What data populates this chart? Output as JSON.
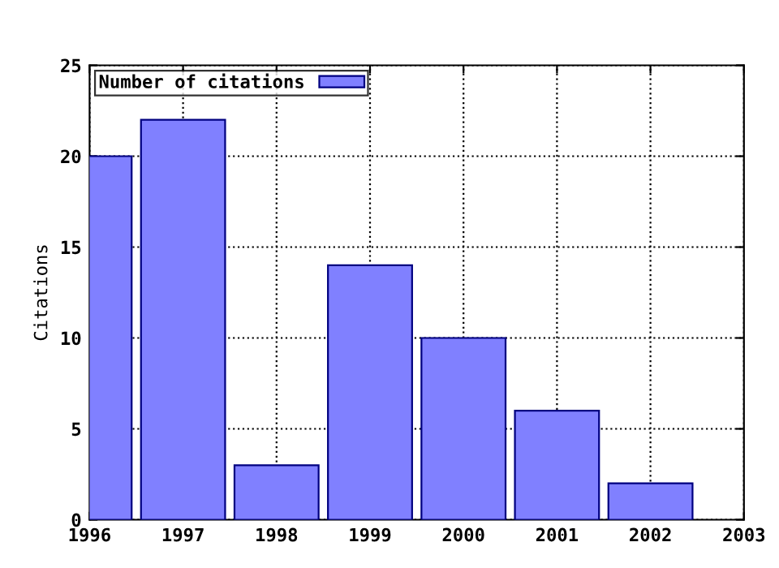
{
  "chart_data": {
    "type": "bar",
    "ylabel": "Citations",
    "x": [
      1996,
      1997,
      1998,
      1999,
      2000,
      2001,
      2002
    ],
    "series": [
      {
        "name": "Number of citations",
        "color": "#8080ff",
        "values": [
          20,
          22,
          3,
          14,
          10,
          6,
          2
        ]
      }
    ],
    "xlim": [
      1996,
      2003
    ],
    "xticks": [
      1996,
      1997,
      1998,
      1999,
      2000,
      2001,
      2002,
      2003
    ],
    "ylim": [
      0,
      25
    ],
    "yticks": [
      0,
      5,
      10,
      15,
      20,
      25
    ],
    "grid": true,
    "line_style": "dotted",
    "legend": "top left"
  }
}
